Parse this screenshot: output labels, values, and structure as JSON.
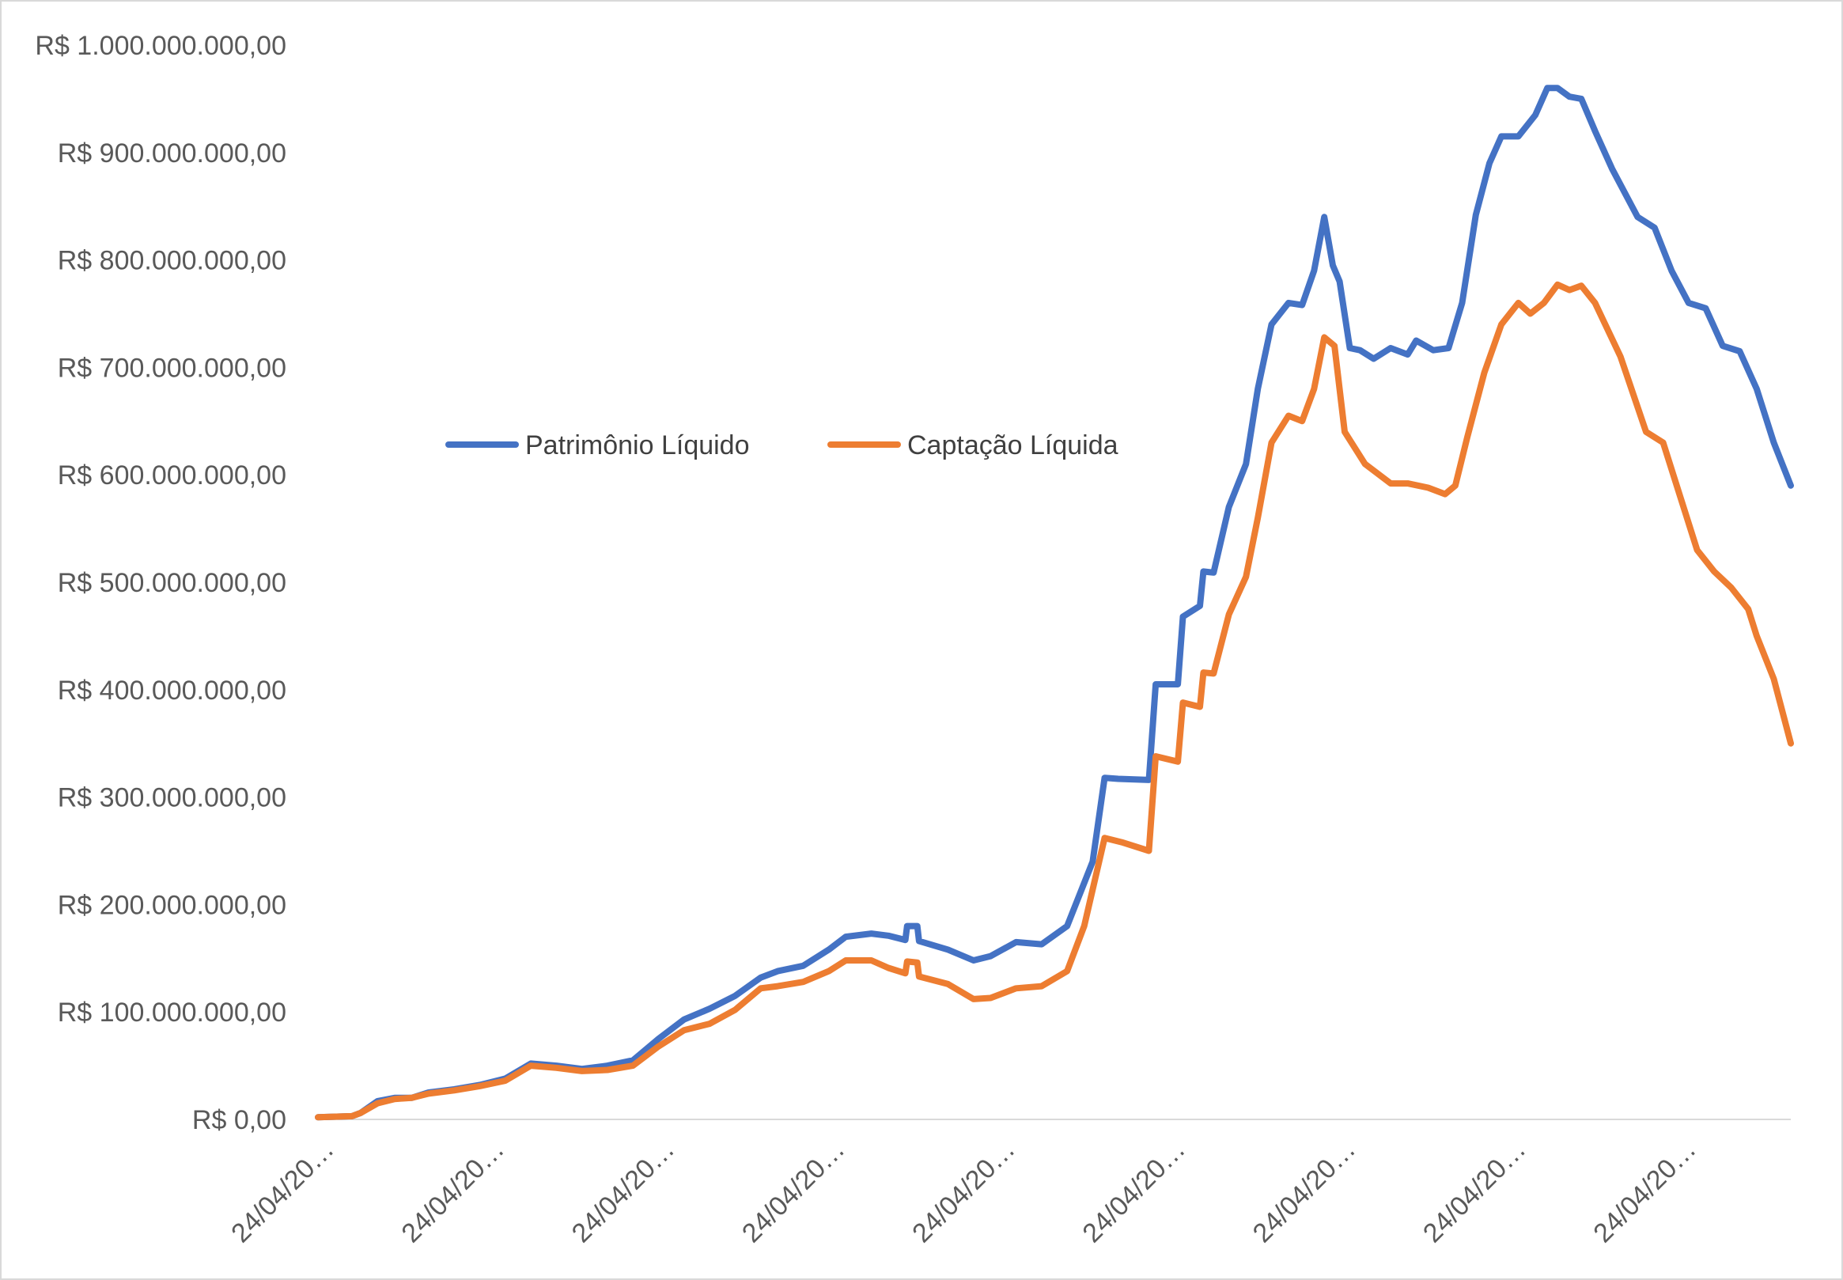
{
  "chart_data": {
    "type": "line",
    "title": "",
    "xlabel": "",
    "ylabel": "",
    "ylim": [
      0,
      1000000000
    ],
    "y_ticks": [
      {
        "value": 0,
        "label": "R$ 0,00"
      },
      {
        "value": 100000000,
        "label": "R$ 100.000.000,00"
      },
      {
        "value": 200000000,
        "label": "R$ 200.000.000,00"
      },
      {
        "value": 300000000,
        "label": "R$ 300.000.000,00"
      },
      {
        "value": 400000000,
        "label": "R$ 400.000.000,00"
      },
      {
        "value": 500000000,
        "label": "R$ 500.000.000,00"
      },
      {
        "value": 600000000,
        "label": "R$ 600.000.000,00"
      },
      {
        "value": 700000000,
        "label": "R$ 700.000.000,00"
      },
      {
        "value": 800000000,
        "label": "R$ 800.000.000,00"
      },
      {
        "value": 900000000,
        "label": "R$ 900.000.000,00"
      },
      {
        "value": 1000000000,
        "label": "R$ 1.000.000.000,00"
      }
    ],
    "x_tick_labels": [
      "24/04/20…",
      "24/04/20…",
      "24/04/20…",
      "24/04/20…",
      "24/04/20…",
      "24/04/20…",
      "24/04/20…",
      "24/04/20…",
      "24/04/20…"
    ],
    "x_tick_positions": [
      0,
      100,
      200,
      300,
      400,
      500,
      600,
      700,
      800
    ],
    "xlim": [
      0,
      865
    ],
    "grid": false,
    "legend_position": "top-left",
    "series": [
      {
        "name": "Patrimônio Líquido",
        "color": "#4472C4",
        "points": [
          [
            0,
            2000000
          ],
          [
            20,
            3000000
          ],
          [
            25,
            6000000
          ],
          [
            35,
            17000000
          ],
          [
            45,
            20000000
          ],
          [
            55,
            20000000
          ],
          [
            65,
            25000000
          ],
          [
            80,
            28000000
          ],
          [
            95,
            32000000
          ],
          [
            110,
            38000000
          ],
          [
            125,
            52000000
          ],
          [
            140,
            50000000
          ],
          [
            155,
            47000000
          ],
          [
            170,
            50000000
          ],
          [
            185,
            55000000
          ],
          [
            200,
            75000000
          ],
          [
            215,
            93000000
          ],
          [
            230,
            103000000
          ],
          [
            245,
            115000000
          ],
          [
            260,
            132000000
          ],
          [
            270,
            138000000
          ],
          [
            285,
            143000000
          ],
          [
            300,
            158000000
          ],
          [
            310,
            170000000
          ],
          [
            325,
            173000000
          ],
          [
            335,
            171000000
          ],
          [
            345,
            167000000
          ],
          [
            346,
            180000000
          ],
          [
            352,
            180000000
          ],
          [
            353,
            166000000
          ],
          [
            370,
            158000000
          ],
          [
            385,
            148000000
          ],
          [
            395,
            152000000
          ],
          [
            410,
            165000000
          ],
          [
            425,
            163000000
          ],
          [
            440,
            180000000
          ],
          [
            455,
            240000000
          ],
          [
            462,
            318000000
          ],
          [
            470,
            317000000
          ],
          [
            488,
            316000000
          ],
          [
            492,
            405000000
          ],
          [
            505,
            405000000
          ],
          [
            508,
            468000000
          ],
          [
            518,
            478000000
          ],
          [
            520,
            510000000
          ],
          [
            526,
            509000000
          ],
          [
            535,
            570000000
          ],
          [
            545,
            610000000
          ],
          [
            552,
            680000000
          ],
          [
            560,
            740000000
          ],
          [
            570,
            760000000
          ],
          [
            578,
            758000000
          ],
          [
            585,
            790000000
          ],
          [
            591,
            840000000
          ],
          [
            596,
            795000000
          ],
          [
            600,
            780000000
          ],
          [
            606,
            718000000
          ],
          [
            612,
            716000000
          ],
          [
            620,
            708000000
          ],
          [
            630,
            718000000
          ],
          [
            640,
            712000000
          ],
          [
            645,
            725000000
          ],
          [
            655,
            716000000
          ],
          [
            664,
            718000000
          ],
          [
            672,
            760000000
          ],
          [
            680,
            842000000
          ],
          [
            688,
            890000000
          ],
          [
            695,
            915000000
          ],
          [
            705,
            915000000
          ],
          [
            715,
            935000000
          ],
          [
            722,
            960000000
          ],
          [
            728,
            960000000
          ],
          [
            735,
            952000000
          ],
          [
            742,
            950000000
          ],
          [
            750,
            920000000
          ],
          [
            760,
            885000000
          ],
          [
            775,
            840000000
          ],
          [
            785,
            830000000
          ],
          [
            795,
            790000000
          ],
          [
            805,
            760000000
          ],
          [
            815,
            755000000
          ],
          [
            825,
            720000000
          ],
          [
            835,
            715000000
          ],
          [
            845,
            680000000
          ],
          [
            855,
            630000000
          ],
          [
            865,
            590000000
          ]
        ]
      },
      {
        "name": "Captação Líquida",
        "color": "#ED7D31",
        "points": [
          [
            0,
            2000000
          ],
          [
            20,
            3000000
          ],
          [
            25,
            6000000
          ],
          [
            35,
            15000000
          ],
          [
            45,
            19000000
          ],
          [
            55,
            20000000
          ],
          [
            65,
            24000000
          ],
          [
            80,
            27000000
          ],
          [
            95,
            31000000
          ],
          [
            110,
            36000000
          ],
          [
            125,
            50000000
          ],
          [
            140,
            48000000
          ],
          [
            155,
            45000000
          ],
          [
            170,
            46000000
          ],
          [
            185,
            50000000
          ],
          [
            200,
            68000000
          ],
          [
            215,
            83000000
          ],
          [
            230,
            89000000
          ],
          [
            245,
            102000000
          ],
          [
            260,
            122000000
          ],
          [
            270,
            124000000
          ],
          [
            285,
            128000000
          ],
          [
            300,
            138000000
          ],
          [
            310,
            148000000
          ],
          [
            325,
            148000000
          ],
          [
            335,
            141000000
          ],
          [
            345,
            136000000
          ],
          [
            346,
            147000000
          ],
          [
            352,
            146000000
          ],
          [
            353,
            133000000
          ],
          [
            370,
            126000000
          ],
          [
            385,
            112000000
          ],
          [
            395,
            113000000
          ],
          [
            410,
            122000000
          ],
          [
            425,
            124000000
          ],
          [
            440,
            138000000
          ],
          [
            450,
            180000000
          ],
          [
            462,
            262000000
          ],
          [
            472,
            258000000
          ],
          [
            488,
            250000000
          ],
          [
            492,
            338000000
          ],
          [
            505,
            333000000
          ],
          [
            508,
            388000000
          ],
          [
            518,
            384000000
          ],
          [
            520,
            416000000
          ],
          [
            526,
            415000000
          ],
          [
            535,
            470000000
          ],
          [
            545,
            505000000
          ],
          [
            552,
            560000000
          ],
          [
            560,
            630000000
          ],
          [
            570,
            655000000
          ],
          [
            578,
            650000000
          ],
          [
            585,
            680000000
          ],
          [
            591,
            728000000
          ],
          [
            597,
            720000000
          ],
          [
            603,
            640000000
          ],
          [
            615,
            610000000
          ],
          [
            630,
            592000000
          ],
          [
            640,
            592000000
          ],
          [
            652,
            588000000
          ],
          [
            662,
            582000000
          ],
          [
            668,
            590000000
          ],
          [
            675,
            635000000
          ],
          [
            685,
            695000000
          ],
          [
            695,
            740000000
          ],
          [
            705,
            760000000
          ],
          [
            712,
            750000000
          ],
          [
            720,
            760000000
          ],
          [
            728,
            777000000
          ],
          [
            735,
            772000000
          ],
          [
            742,
            776000000
          ],
          [
            750,
            760000000
          ],
          [
            765,
            710000000
          ],
          [
            780,
            640000000
          ],
          [
            790,
            630000000
          ],
          [
            800,
            580000000
          ],
          [
            810,
            530000000
          ],
          [
            820,
            510000000
          ],
          [
            830,
            495000000
          ],
          [
            840,
            475000000
          ],
          [
            845,
            450000000
          ],
          [
            855,
            410000000
          ],
          [
            865,
            350000000
          ]
        ]
      }
    ]
  }
}
